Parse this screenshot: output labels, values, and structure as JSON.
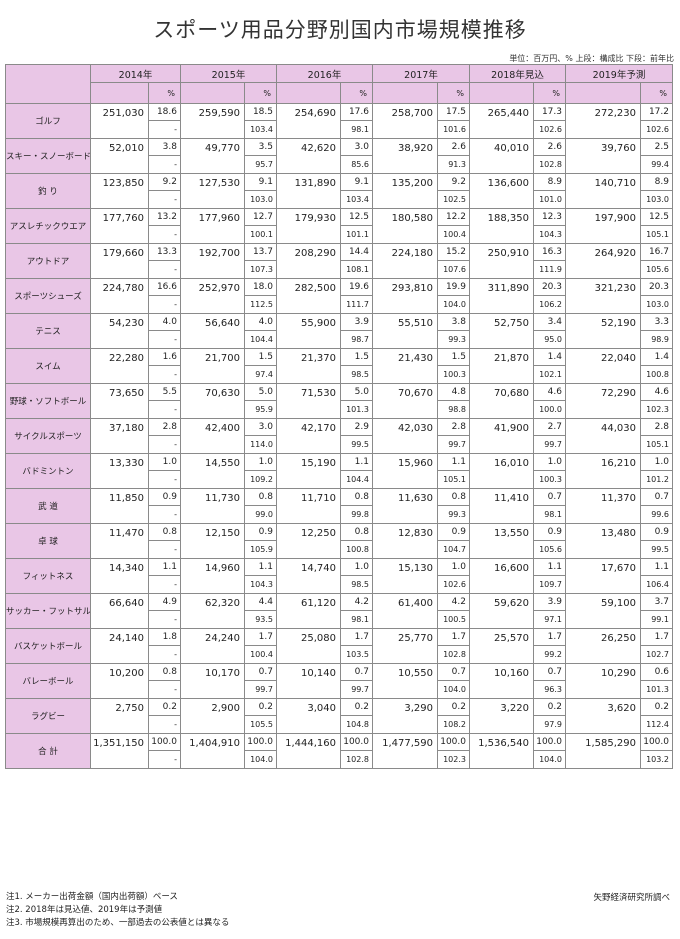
{
  "title": "スポーツ用品分野別国内市場規模推移",
  "unit_note": "単位：百万円、% 上段：構成比 下段：前年比",
  "years": [
    "2014年",
    "2015年",
    "2016年",
    "2017年",
    "2018年見込",
    "2019年予測"
  ],
  "pct_label": "%",
  "rows": [
    {
      "label": "ゴルフ",
      "cells": [
        [
          "251,030",
          "18.6",
          "-"
        ],
        [
          "259,590",
          "18.5",
          "103.4"
        ],
        [
          "254,690",
          "17.6",
          "98.1"
        ],
        [
          "258,700",
          "17.5",
          "101.6"
        ],
        [
          "265,440",
          "17.3",
          "102.6"
        ],
        [
          "272,230",
          "17.2",
          "102.6"
        ]
      ]
    },
    {
      "label": "スキー・スノーボード",
      "cells": [
        [
          "52,010",
          "3.8",
          "-"
        ],
        [
          "49,770",
          "3.5",
          "95.7"
        ],
        [
          "42,620",
          "3.0",
          "85.6"
        ],
        [
          "38,920",
          "2.6",
          "91.3"
        ],
        [
          "40,010",
          "2.6",
          "102.8"
        ],
        [
          "39,760",
          "2.5",
          "99.4"
        ]
      ]
    },
    {
      "label": "釣 り",
      "cells": [
        [
          "123,850",
          "9.2",
          "-"
        ],
        [
          "127,530",
          "9.1",
          "103.0"
        ],
        [
          "131,890",
          "9.1",
          "103.4"
        ],
        [
          "135,200",
          "9.2",
          "102.5"
        ],
        [
          "136,600",
          "8.9",
          "101.0"
        ],
        [
          "140,710",
          "8.9",
          "103.0"
        ]
      ]
    },
    {
      "label": "アスレチックウエア",
      "cells": [
        [
          "177,760",
          "13.2",
          "-"
        ],
        [
          "177,960",
          "12.7",
          "100.1"
        ],
        [
          "179,930",
          "12.5",
          "101.1"
        ],
        [
          "180,580",
          "12.2",
          "100.4"
        ],
        [
          "188,350",
          "12.3",
          "104.3"
        ],
        [
          "197,900",
          "12.5",
          "105.1"
        ]
      ]
    },
    {
      "label": "アウトドア",
      "cells": [
        [
          "179,660",
          "13.3",
          "-"
        ],
        [
          "192,700",
          "13.7",
          "107.3"
        ],
        [
          "208,290",
          "14.4",
          "108.1"
        ],
        [
          "224,180",
          "15.2",
          "107.6"
        ],
        [
          "250,910",
          "16.3",
          "111.9"
        ],
        [
          "264,920",
          "16.7",
          "105.6"
        ]
      ]
    },
    {
      "label": "スポーツシューズ",
      "cells": [
        [
          "224,780",
          "16.6",
          "-"
        ],
        [
          "252,970",
          "18.0",
          "112.5"
        ],
        [
          "282,500",
          "19.6",
          "111.7"
        ],
        [
          "293,810",
          "19.9",
          "104.0"
        ],
        [
          "311,890",
          "20.3",
          "106.2"
        ],
        [
          "321,230",
          "20.3",
          "103.0"
        ]
      ]
    },
    {
      "label": "テニス",
      "cells": [
        [
          "54,230",
          "4.0",
          "-"
        ],
        [
          "56,640",
          "4.0",
          "104.4"
        ],
        [
          "55,900",
          "3.9",
          "98.7"
        ],
        [
          "55,510",
          "3.8",
          "99.3"
        ],
        [
          "52,750",
          "3.4",
          "95.0"
        ],
        [
          "52,190",
          "3.3",
          "98.9"
        ]
      ]
    },
    {
      "label": "スイム",
      "cells": [
        [
          "22,280",
          "1.6",
          "-"
        ],
        [
          "21,700",
          "1.5",
          "97.4"
        ],
        [
          "21,370",
          "1.5",
          "98.5"
        ],
        [
          "21,430",
          "1.5",
          "100.3"
        ],
        [
          "21,870",
          "1.4",
          "102.1"
        ],
        [
          "22,040",
          "1.4",
          "100.8"
        ]
      ]
    },
    {
      "label": "野球・ソフトボール",
      "cells": [
        [
          "73,650",
          "5.5",
          "-"
        ],
        [
          "70,630",
          "5.0",
          "95.9"
        ],
        [
          "71,530",
          "5.0",
          "101.3"
        ],
        [
          "70,670",
          "4.8",
          "98.8"
        ],
        [
          "70,680",
          "4.6",
          "100.0"
        ],
        [
          "72,290",
          "4.6",
          "102.3"
        ]
      ]
    },
    {
      "label": "サイクルスポーツ",
      "cells": [
        [
          "37,180",
          "2.8",
          "-"
        ],
        [
          "42,400",
          "3.0",
          "114.0"
        ],
        [
          "42,170",
          "2.9",
          "99.5"
        ],
        [
          "42,030",
          "2.8",
          "99.7"
        ],
        [
          "41,900",
          "2.7",
          "99.7"
        ],
        [
          "44,030",
          "2.8",
          "105.1"
        ]
      ]
    },
    {
      "label": "バドミントン",
      "cells": [
        [
          "13,330",
          "1.0",
          "-"
        ],
        [
          "14,550",
          "1.0",
          "109.2"
        ],
        [
          "15,190",
          "1.1",
          "104.4"
        ],
        [
          "15,960",
          "1.1",
          "105.1"
        ],
        [
          "16,010",
          "1.0",
          "100.3"
        ],
        [
          "16,210",
          "1.0",
          "101.2"
        ]
      ]
    },
    {
      "label": "武 道",
      "cells": [
        [
          "11,850",
          "0.9",
          "-"
        ],
        [
          "11,730",
          "0.8",
          "99.0"
        ],
        [
          "11,710",
          "0.8",
          "99.8"
        ],
        [
          "11,630",
          "0.8",
          "99.3"
        ],
        [
          "11,410",
          "0.7",
          "98.1"
        ],
        [
          "11,370",
          "0.7",
          "99.6"
        ]
      ]
    },
    {
      "label": "卓 球",
      "cells": [
        [
          "11,470",
          "0.8",
          "-"
        ],
        [
          "12,150",
          "0.9",
          "105.9"
        ],
        [
          "12,250",
          "0.8",
          "100.8"
        ],
        [
          "12,830",
          "0.9",
          "104.7"
        ],
        [
          "13,550",
          "0.9",
          "105.6"
        ],
        [
          "13,480",
          "0.9",
          "99.5"
        ]
      ]
    },
    {
      "label": "フィットネス",
      "cells": [
        [
          "14,340",
          "1.1",
          "-"
        ],
        [
          "14,960",
          "1.1",
          "104.3"
        ],
        [
          "14,740",
          "1.0",
          "98.5"
        ],
        [
          "15,130",
          "1.0",
          "102.6"
        ],
        [
          "16,600",
          "1.1",
          "109.7"
        ],
        [
          "17,670",
          "1.1",
          "106.4"
        ]
      ]
    },
    {
      "label": "サッカー・フットサル",
      "cells": [
        [
          "66,640",
          "4.9",
          "-"
        ],
        [
          "62,320",
          "4.4",
          "93.5"
        ],
        [
          "61,120",
          "4.2",
          "98.1"
        ],
        [
          "61,400",
          "4.2",
          "100.5"
        ],
        [
          "59,620",
          "3.9",
          "97.1"
        ],
        [
          "59,100",
          "3.7",
          "99.1"
        ]
      ]
    },
    {
      "label": "バスケットボール",
      "cells": [
        [
          "24,140",
          "1.8",
          "-"
        ],
        [
          "24,240",
          "1.7",
          "100.4"
        ],
        [
          "25,080",
          "1.7",
          "103.5"
        ],
        [
          "25,770",
          "1.7",
          "102.8"
        ],
        [
          "25,570",
          "1.7",
          "99.2"
        ],
        [
          "26,250",
          "1.7",
          "102.7"
        ]
      ]
    },
    {
      "label": "バレーボール",
      "cells": [
        [
          "10,200",
          "0.8",
          "-"
        ],
        [
          "10,170",
          "0.7",
          "99.7"
        ],
        [
          "10,140",
          "0.7",
          "99.7"
        ],
        [
          "10,550",
          "0.7",
          "104.0"
        ],
        [
          "10,160",
          "0.7",
          "96.3"
        ],
        [
          "10,290",
          "0.6",
          "101.3"
        ]
      ]
    },
    {
      "label": "ラグビー",
      "cells": [
        [
          "2,750",
          "0.2",
          "-"
        ],
        [
          "2,900",
          "0.2",
          "105.5"
        ],
        [
          "3,040",
          "0.2",
          "104.8"
        ],
        [
          "3,290",
          "0.2",
          "108.2"
        ],
        [
          "3,220",
          "0.2",
          "97.9"
        ],
        [
          "3,620",
          "0.2",
          "112.4"
        ]
      ]
    },
    {
      "label": "合 計",
      "cells": [
        [
          "1,351,150",
          "100.0",
          "-"
        ],
        [
          "1,404,910",
          "100.0",
          "104.0"
        ],
        [
          "1,444,160",
          "100.0",
          "102.8"
        ],
        [
          "1,477,590",
          "100.0",
          "102.3"
        ],
        [
          "1,536,540",
          "100.0",
          "104.0"
        ],
        [
          "1,585,290",
          "100.0",
          "103.2"
        ]
      ]
    }
  ],
  "notes": [
    "注1. メーカー出荷金額（国内出荷額）ベース",
    "注2. 2018年は見込値、2019年は予測値",
    "注3. 市場規模再算出のため、一部過去の公表値とは異なる"
  ],
  "source": "矢野経済研究所調べ"
}
